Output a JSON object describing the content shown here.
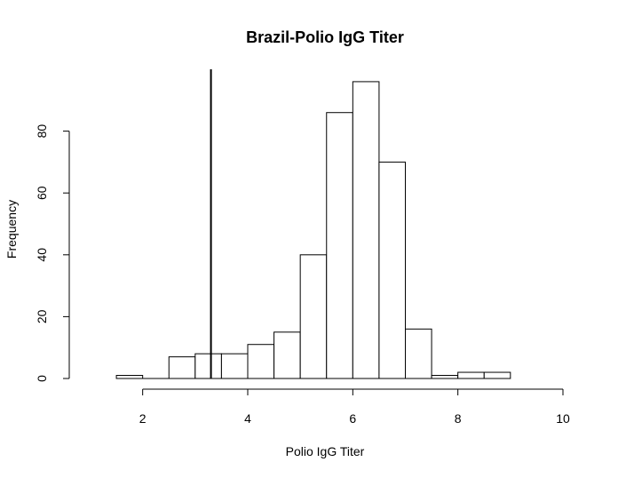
{
  "chart_data": {
    "type": "bar",
    "title": "Brazil-Polio IgG Titer",
    "xlabel": "Polio IgG Titer",
    "ylabel": "Frequency",
    "xlim": [
      1,
      10
    ],
    "ylim": [
      0,
      100
    ],
    "x_ticks": [
      2,
      4,
      6,
      8,
      10
    ],
    "y_ticks": [
      0,
      20,
      40,
      60,
      80
    ],
    "bin_width": 0.5,
    "bins": [
      {
        "start": 1.5,
        "end": 2.0,
        "count": 1
      },
      {
        "start": 2.0,
        "end": 2.5,
        "count": 0
      },
      {
        "start": 2.5,
        "end": 3.0,
        "count": 7
      },
      {
        "start": 3.0,
        "end": 3.5,
        "count": 8
      },
      {
        "start": 3.5,
        "end": 4.0,
        "count": 8
      },
      {
        "start": 4.0,
        "end": 4.5,
        "count": 11
      },
      {
        "start": 4.5,
        "end": 5.0,
        "count": 15
      },
      {
        "start": 5.0,
        "end": 5.5,
        "count": 40
      },
      {
        "start": 5.5,
        "end": 6.0,
        "count": 86
      },
      {
        "start": 6.0,
        "end": 6.5,
        "count": 96
      },
      {
        "start": 6.5,
        "end": 7.0,
        "count": 70
      },
      {
        "start": 7.0,
        "end": 7.5,
        "count": 16
      },
      {
        "start": 7.5,
        "end": 8.0,
        "count": 1
      },
      {
        "start": 8.0,
        "end": 8.5,
        "count": 2
      },
      {
        "start": 8.5,
        "end": 9.0,
        "count": 2
      }
    ],
    "reference_line": {
      "x": 3.3
    },
    "grid": false,
    "legend": "none"
  }
}
